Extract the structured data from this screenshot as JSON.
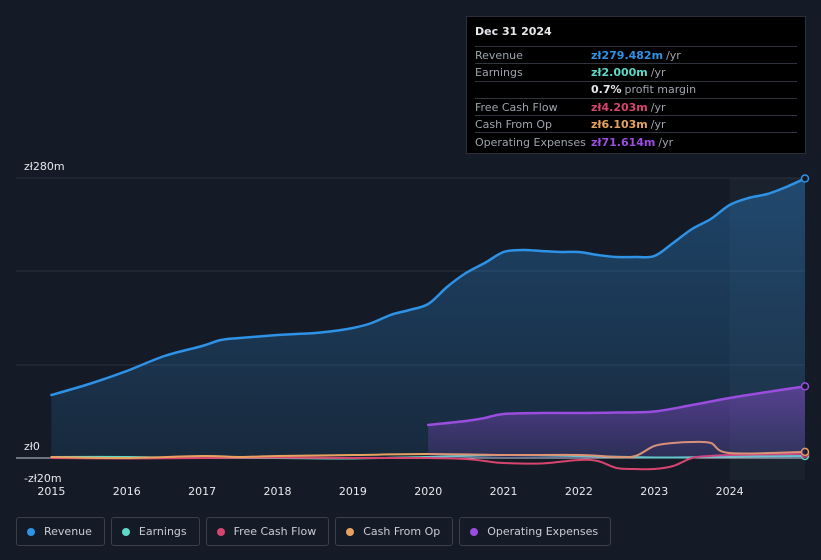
{
  "chart_data": {
    "type": "area",
    "x_ticks": [
      "2015",
      "2016",
      "2017",
      "2018",
      "2019",
      "2020",
      "2021",
      "2022",
      "2023",
      "2024"
    ],
    "y_labels": [
      {
        "value": 280,
        "label": "zł280m"
      },
      {
        "value": 0,
        "label": "zł0"
      },
      {
        "value": -20,
        "label": "-zł20m"
      }
    ],
    "ylim": [
      -20,
      280
    ],
    "xlim": [
      2014.53,
      2025.0
    ],
    "forecast_start": 2024.0,
    "series": [
      {
        "name": "Revenue",
        "color": "#2e92e6",
        "fill": true,
        "x": [
          2015.0,
          2015.5,
          2016.0,
          2016.5,
          2017.0,
          2017.25,
          2017.5,
          2018.0,
          2018.25,
          2018.5,
          2018.75,
          2019.0,
          2019.25,
          2019.5,
          2019.75,
          2020.0,
          2020.25,
          2020.5,
          2020.75,
          2021.0,
          2021.25,
          2021.5,
          2021.75,
          2022.0,
          2022.25,
          2022.5,
          2022.75,
          2023.0,
          2023.25,
          2023.5,
          2023.75,
          2024.0,
          2024.25,
          2024.5,
          2024.75,
          2025.0
        ],
        "values": [
          63,
          74,
          87,
          102,
          112,
          118,
          120,
          123,
          124,
          125,
          127,
          130,
          135,
          143,
          148,
          154,
          171,
          185,
          195,
          206,
          208,
          207,
          206,
          206,
          203,
          201,
          201,
          202,
          215,
          229,
          239,
          253,
          260,
          264,
          271,
          279.5
        ]
      },
      {
        "name": "Earnings",
        "color": "#5ed8c8",
        "fill": false,
        "x": [
          2015.0,
          2016.0,
          2017.0,
          2018.0,
          2019.0,
          2020.0,
          2021.0,
          2022.0,
          2023.0,
          2023.5,
          2024.0,
          2025.0
        ],
        "values": [
          1,
          1,
          0,
          0,
          -0.5,
          1,
          3,
          2,
          0.5,
          0.8,
          1.5,
          2.0
        ]
      },
      {
        "name": "Free Cash Flow",
        "color": "#d7456f",
        "fill": false,
        "x": [
          2015.0,
          2016.0,
          2017.0,
          2018.0,
          2019.0,
          2020.0,
          2020.5,
          2020.75,
          2021.0,
          2021.5,
          2022.0,
          2022.25,
          2022.5,
          2022.75,
          2023.0,
          2023.25,
          2023.5,
          2023.75,
          2024.0,
          2025.0
        ],
        "values": [
          0,
          -0.5,
          0,
          0.5,
          0,
          0,
          -1,
          -3,
          -5,
          -5.5,
          -2,
          -3,
          -10,
          -11,
          -11,
          -8,
          0,
          2,
          3,
          4.2
        ]
      },
      {
        "name": "Cash From Op",
        "color": "#e8a25f",
        "fill": false,
        "x": [
          2015.0,
          2016.0,
          2017.0,
          2017.5,
          2018.0,
          2019.0,
          2020.0,
          2021.0,
          2022.0,
          2022.5,
          2022.75,
          2023.0,
          2023.25,
          2023.5,
          2023.75,
          2024.0,
          2025.0
        ],
        "values": [
          1,
          0,
          2,
          1,
          2,
          3,
          4,
          3,
          3,
          1,
          2,
          12,
          15,
          16,
          15,
          5,
          6.1
        ]
      },
      {
        "name": "Operating Expenses",
        "color": "#9b4de0",
        "fill": true,
        "x": [
          2020.0,
          2020.5,
          2020.75,
          2021.0,
          2021.5,
          2022.0,
          2022.5,
          2023.0,
          2023.5,
          2024.0,
          2024.5,
          2025.0
        ],
        "values": [
          33,
          37,
          40,
          44,
          45,
          45,
          45.5,
          46.5,
          53,
          60,
          66,
          71.6
        ]
      }
    ],
    "tooltip": {
      "date": "Dec 31 2024",
      "rows": [
        {
          "label": "Revenue",
          "value": "zł279.482m",
          "unit": "/yr",
          "color": "#2e92e6"
        },
        {
          "label": "Earnings",
          "value": "zł2.000m",
          "unit": "/yr",
          "color": "#5ed8c8"
        },
        {
          "label": "",
          "value": "0.7%",
          "unit": "profit margin",
          "color": "#e6e8ec"
        },
        {
          "label": "Free Cash Flow",
          "value": "zł4.203m",
          "unit": "/yr",
          "color": "#d7456f"
        },
        {
          "label": "Cash From Op",
          "value": "zł6.103m",
          "unit": "/yr",
          "color": "#e8a25f"
        },
        {
          "label": "Operating Expenses",
          "value": "zł71.614m",
          "unit": "/yr",
          "color": "#9b4de0"
        }
      ]
    }
  },
  "legend": [
    {
      "label": "Revenue",
      "color": "#2e92e6"
    },
    {
      "label": "Earnings",
      "color": "#5ed8c8"
    },
    {
      "label": "Free Cash Flow",
      "color": "#d7456f"
    },
    {
      "label": "Cash From Op",
      "color": "#e8a25f"
    },
    {
      "label": "Operating Expenses",
      "color": "#9b4de0"
    }
  ]
}
